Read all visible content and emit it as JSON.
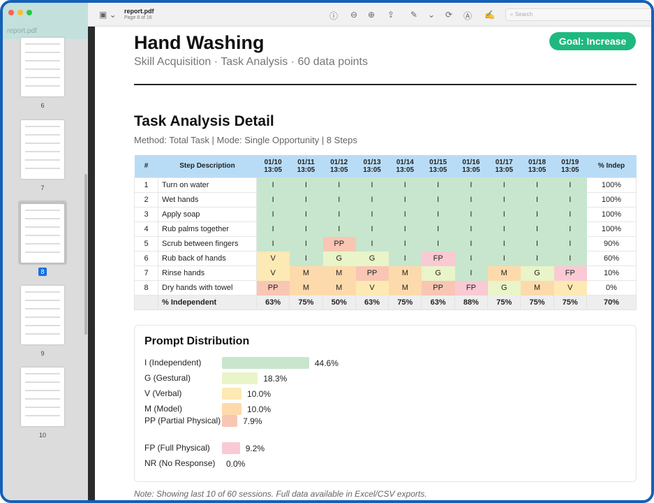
{
  "window": {
    "filename": "report.pdf",
    "page_info": "Page 8 of 16",
    "search_placeholder": "Search"
  },
  "sidebar": {
    "title": "report.pdf",
    "pages": [
      "6",
      "7",
      "8",
      "9",
      "10"
    ],
    "selected": "8"
  },
  "header": {
    "title": "Hand Washing",
    "subtitle": "Skill Acquisition · Task Analysis · 60 data points",
    "goal": "Goal: Increase"
  },
  "detail": {
    "title": "Task Analysis Detail",
    "method": "Method: Total Task | Mode: Single Opportunity | 8 Steps",
    "columns": {
      "num": "#",
      "step": "Step Description",
      "pct": "% Indep"
    },
    "dates": [
      [
        "01/10",
        "13:05"
      ],
      [
        "01/11",
        "13:05"
      ],
      [
        "01/12",
        "13:05"
      ],
      [
        "01/13",
        "13:05"
      ],
      [
        "01/14",
        "13:05"
      ],
      [
        "01/15",
        "13:05"
      ],
      [
        "01/16",
        "13:05"
      ],
      [
        "01/17",
        "13:05"
      ],
      [
        "01/18",
        "13:05"
      ],
      [
        "01/19",
        "13:05"
      ]
    ],
    "rows": [
      {
        "num": "1",
        "step": "Turn on water",
        "cells": [
          "I",
          "I",
          "I",
          "I",
          "I",
          "I",
          "I",
          "I",
          "I",
          "I"
        ],
        "pct": "100%"
      },
      {
        "num": "2",
        "step": "Wet hands",
        "cells": [
          "I",
          "I",
          "I",
          "I",
          "I",
          "I",
          "I",
          "I",
          "I",
          "I"
        ],
        "pct": "100%"
      },
      {
        "num": "3",
        "step": "Apply soap",
        "cells": [
          "I",
          "I",
          "I",
          "I",
          "I",
          "I",
          "I",
          "I",
          "I",
          "I"
        ],
        "pct": "100%"
      },
      {
        "num": "4",
        "step": "Rub palms together",
        "cells": [
          "I",
          "I",
          "I",
          "I",
          "I",
          "I",
          "I",
          "I",
          "I",
          "I"
        ],
        "pct": "100%"
      },
      {
        "num": "5",
        "step": "Scrub between fingers",
        "cells": [
          "I",
          "I",
          "PP",
          "I",
          "I",
          "I",
          "I",
          "I",
          "I",
          "I"
        ],
        "pct": "90%"
      },
      {
        "num": "6",
        "step": "Rub back of hands",
        "cells": [
          "V",
          "I",
          "G",
          "G",
          "I",
          "FP",
          "I",
          "I",
          "I",
          "I"
        ],
        "pct": "60%"
      },
      {
        "num": "7",
        "step": "Rinse hands",
        "cells": [
          "V",
          "M",
          "M",
          "PP",
          "M",
          "G",
          "I",
          "M",
          "G",
          "FP"
        ],
        "pct": "10%"
      },
      {
        "num": "8",
        "step": "Dry hands with towel",
        "cells": [
          "PP",
          "M",
          "M",
          "V",
          "M",
          "PP",
          "FP",
          "G",
          "M",
          "V"
        ],
        "pct": "0%"
      }
    ],
    "footer": {
      "label": "% Independent",
      "values": [
        "63%",
        "75%",
        "50%",
        "63%",
        "75%",
        "63%",
        "88%",
        "75%",
        "75%",
        "75%"
      ],
      "total": "70%"
    }
  },
  "prompt_colors": {
    "I": "#c8e6cd",
    "G": "#e9f4c8",
    "V": "#fde9b4",
    "M": "#fddaab",
    "PP": "#f9c6b3",
    "FP": "#f9cad3",
    "NR": "#eeeeee"
  },
  "distribution": {
    "title": "Prompt Distribution",
    "items": [
      {
        "code": "I",
        "label": "I (Independent)",
        "value": 44.6,
        "text": "44.6%"
      },
      {
        "code": "G",
        "label": "G (Gestural)",
        "value": 18.3,
        "text": "18.3%"
      },
      {
        "code": "V",
        "label": "V (Verbal)",
        "value": 10.0,
        "text": "10.0%"
      },
      {
        "code": "M",
        "label": "M (Model)",
        "value": 10.0,
        "text": "10.0%"
      },
      {
        "code": "PP",
        "label": "PP (Partial Physical)",
        "value": 7.9,
        "text": "7.9%"
      },
      {
        "code": "FP",
        "label": "FP (Full Physical)",
        "value": 9.2,
        "text": "9.2%"
      },
      {
        "code": "NR",
        "label": "NR (No Response)",
        "value": 0.0,
        "text": "0.0%"
      }
    ]
  },
  "note": "Note: Showing last 10 of 60 sessions. Full data available in Excel/CSV exports."
}
